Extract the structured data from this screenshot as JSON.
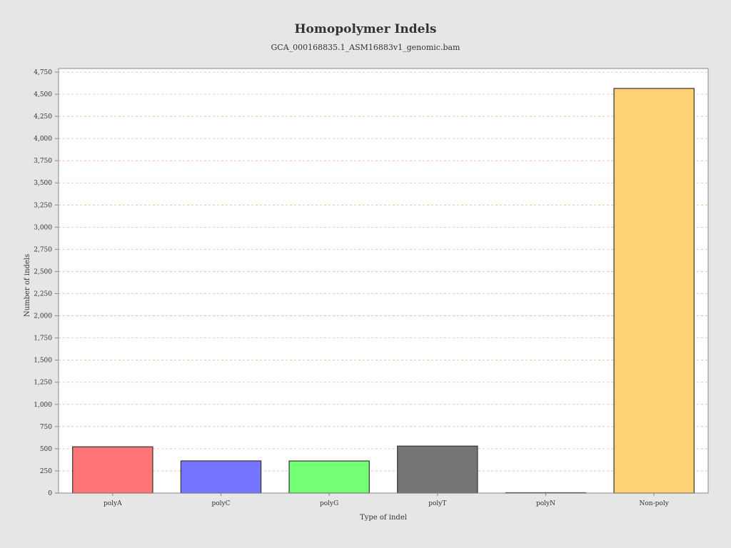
{
  "chart_data": {
    "type": "bar",
    "title": "Homopolymer Indels",
    "subtitle": "GCA_000168835.1_ASM16883v1_genomic.bam",
    "xlabel": "Type of indel",
    "ylabel": "Number of indels",
    "categories": [
      "polyA",
      "polyC",
      "polyG",
      "polyT",
      "polyN",
      "Non-poly"
    ],
    "values": [
      522,
      363,
      362,
      530,
      0,
      4565
    ],
    "colors": [
      "#ff7575",
      "#7575ff",
      "#75ff75",
      "#757575",
      "#ffffff",
      "#ffd275"
    ],
    "ylim": [
      0,
      4790
    ],
    "yticks": [
      0,
      250,
      500,
      750,
      1000,
      1250,
      1500,
      1750,
      2000,
      2250,
      2500,
      2750,
      3000,
      3250,
      3500,
      3750,
      4000,
      4250,
      4500,
      4750
    ],
    "ytick_labels": [
      "0",
      "250",
      "500",
      "750",
      "1,000",
      "1,250",
      "1,500",
      "1,750",
      "2,000",
      "2,250",
      "2,500",
      "2,750",
      "3,000",
      "3,250",
      "3,500",
      "3,750",
      "4,000",
      "4,250",
      "4,500",
      "4,750"
    ],
    "grid": true,
    "legend": "none"
  }
}
